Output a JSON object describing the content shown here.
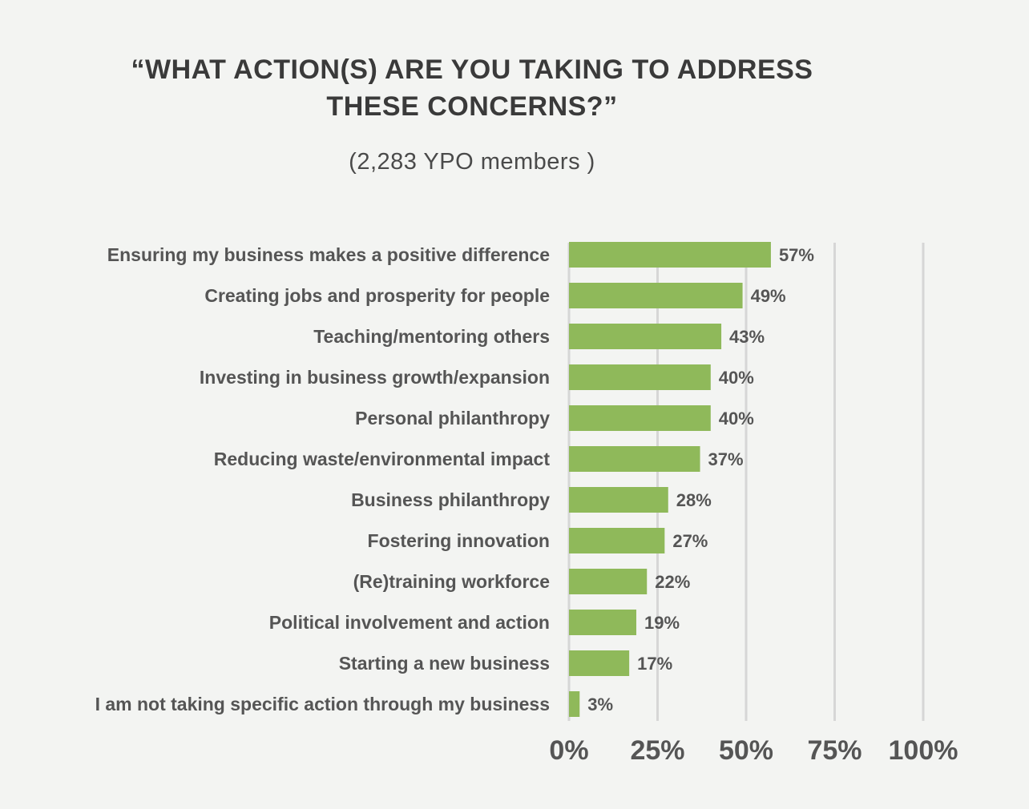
{
  "title_lines": [
    "“WHAT ACTION(S) ARE YOU TAKING TO ADDRESS",
    "THESE CONCERNS?”"
  ],
  "subtitle": "(2,283 YPO members )",
  "colors": {
    "bar": "#8fb95a",
    "grid": "#d6d6d6",
    "text": "#555555",
    "background": "#f3f4f2"
  },
  "chart_data": {
    "type": "bar",
    "orientation": "horizontal",
    "title": "“WHAT ACTION(S) ARE YOU TAKING TO ADDRESS THESE CONCERNS?”",
    "subtitle": "(2,283 YPO members )",
    "categories": [
      "Ensuring my business makes a positive difference",
      "Creating jobs and prosperity for people",
      "Teaching/mentoring others",
      "Investing in business growth/expansion",
      "Personal philanthropy",
      "Reducing waste/environmental impact",
      "Business philanthropy",
      "Fostering innovation",
      "(Re)training workforce",
      "Political involvement and action",
      "Starting a new business",
      "I am not taking specific action through my business"
    ],
    "values": [
      57,
      49,
      43,
      40,
      40,
      37,
      28,
      27,
      22,
      19,
      17,
      3
    ],
    "value_labels": [
      "57%",
      "49%",
      "43%",
      "40%",
      "40%",
      "37%",
      "28%",
      "27%",
      "22%",
      "19%",
      "17%",
      "3%"
    ],
    "xlim": [
      0,
      100
    ],
    "xticks": [
      0,
      25,
      50,
      75,
      100
    ],
    "xtick_labels": [
      "0%",
      "25%",
      "50%",
      "75%",
      "100%"
    ],
    "grid": true,
    "legend": "none"
  }
}
